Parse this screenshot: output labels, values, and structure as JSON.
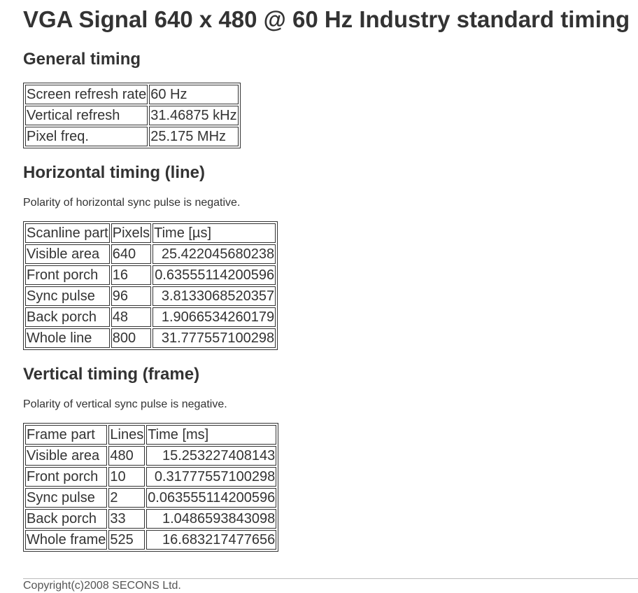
{
  "title": "VGA Signal 640 x 480 @ 60 Hz Industry standard timing",
  "general": {
    "heading": "General timing",
    "rows": [
      [
        "Screen refresh rate",
        "60 Hz"
      ],
      [
        "Vertical refresh",
        "31.46875 kHz"
      ],
      [
        "Pixel freq.",
        "25.175 MHz"
      ]
    ]
  },
  "horizontal": {
    "heading": "Horizontal timing (line)",
    "note": "Polarity of horizontal sync pulse is negative.",
    "headers": [
      "Scanline part",
      "Pixels",
      "Time [µs]"
    ],
    "rows": [
      [
        "Visible area",
        "640",
        "25.422045680238"
      ],
      [
        "Front porch",
        "16",
        "0.63555114200596"
      ],
      [
        "Sync pulse",
        "96",
        "3.8133068520357"
      ],
      [
        "Back porch",
        "48",
        "1.9066534260179"
      ],
      [
        "Whole line",
        "800",
        "31.777557100298"
      ]
    ]
  },
  "vertical": {
    "heading": "Vertical timing (frame)",
    "note": "Polarity of vertical sync pulse is negative.",
    "headers": [
      "Frame part",
      "Lines",
      "Time [ms]"
    ],
    "rows": [
      [
        "Visible area",
        "480",
        "15.253227408143"
      ],
      [
        "Front porch",
        "10",
        "0.31777557100298"
      ],
      [
        "Sync pulse",
        "2",
        "0.063555114200596"
      ],
      [
        "Back porch",
        "33",
        "1.0486593843098"
      ],
      [
        "Whole frame",
        "525",
        "16.683217477656"
      ]
    ]
  },
  "footer": {
    "copyright": "Copyright(c)2008 SECONS Ltd."
  }
}
